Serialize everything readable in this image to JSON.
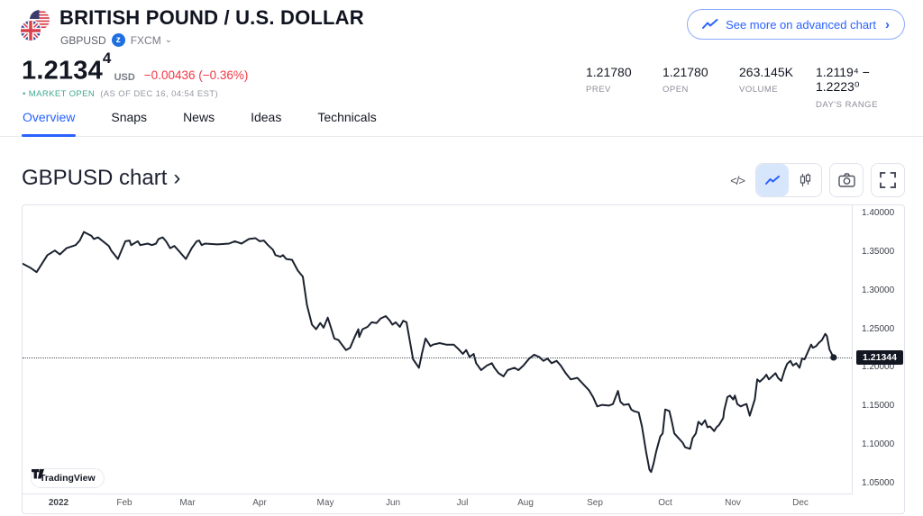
{
  "header": {
    "title": "BRITISH POUND / U.S. DOLLAR",
    "symbol": "GBPUSD",
    "exchange_logo_letter": "z",
    "exchange": "FXCM",
    "exchange_caret": "⌄",
    "advanced_chart_button": "See more on advanced chart",
    "advanced_chart_chevron": "›",
    "price": "1.2134",
    "price_sup": "4",
    "currency": "USD",
    "change": "−0.00436 (−0.36%)",
    "market_bullet": "•",
    "market_status": "MARKET OPEN",
    "market_status_detail": "(AS OF DEC 16, 04:54 EST)",
    "stats": [
      {
        "value": "1.21780",
        "label": "PREV"
      },
      {
        "value": "1.21780",
        "label": "OPEN"
      },
      {
        "value": "263.145K",
        "label": "VOLUME"
      },
      {
        "value": "1.2119⁴ − 1.2223⁰",
        "label": "DAY'S RANGE"
      }
    ]
  },
  "tabs": {
    "active_index": 0,
    "items": [
      "Overview",
      "Snaps",
      "News",
      "Ideas",
      "Technicals"
    ]
  },
  "chart_section": {
    "heading": "GBPUSD chart",
    "heading_chevron": "›",
    "code_icon_text": "</>"
  },
  "watermark_label": "TradingView",
  "colors": {
    "accent_blue": "#2962ff",
    "negative_red": "#f23645",
    "market_open_green": "#3fa98f",
    "line_color": "#1b222f",
    "last_price_tag_bg": "#131722",
    "border_gray": "#e0e3eb"
  },
  "chart_data": {
    "type": "line",
    "title": "GBPUSD chart",
    "xlabel": "",
    "ylabel": "",
    "grid": false,
    "legend": false,
    "ylim": [
      1.0371,
      1.4106
    ],
    "last_price": 1.21344,
    "last_price_label": "1.21344",
    "y_ticks": [
      {
        "value": 1.4,
        "label": "1.40000"
      },
      {
        "value": 1.35,
        "label": "1.35000"
      },
      {
        "value": 1.3,
        "label": "1.30000"
      },
      {
        "value": 1.25,
        "label": "1.25000"
      },
      {
        "value": 1.2,
        "label": "1.20000"
      },
      {
        "value": 1.15,
        "label": "1.15000"
      },
      {
        "value": 1.1,
        "label": "1.10000"
      },
      {
        "value": 1.05,
        "label": "1.05000"
      }
    ],
    "x_ticks": [
      {
        "label": "2022",
        "pos": 0.043,
        "bold": true
      },
      {
        "label": "Feb",
        "pos": 0.123,
        "bold": false
      },
      {
        "label": "Mar",
        "pos": 0.199,
        "bold": false
      },
      {
        "label": "Apr",
        "pos": 0.286,
        "bold": false
      },
      {
        "label": "May",
        "pos": 0.365,
        "bold": false
      },
      {
        "label": "Jun",
        "pos": 0.447,
        "bold": false
      },
      {
        "label": "Jul",
        "pos": 0.53,
        "bold": false
      },
      {
        "label": "Aug",
        "pos": 0.606,
        "bold": false
      },
      {
        "label": "Sep",
        "pos": 0.69,
        "bold": false
      },
      {
        "label": "Oct",
        "pos": 0.775,
        "bold": false
      },
      {
        "label": "Nov",
        "pos": 0.856,
        "bold": false
      },
      {
        "label": "Dec",
        "pos": 0.938,
        "bold": false
      }
    ],
    "points": [
      [
        0.0,
        1.335
      ],
      [
        0.009,
        1.33
      ],
      [
        0.017,
        1.324
      ],
      [
        0.03,
        1.346
      ],
      [
        0.039,
        1.352
      ],
      [
        0.045,
        1.347
      ],
      [
        0.053,
        1.355
      ],
      [
        0.064,
        1.359
      ],
      [
        0.069,
        1.365
      ],
      [
        0.074,
        1.376
      ],
      [
        0.083,
        1.371
      ],
      [
        0.086,
        1.367
      ],
      [
        0.091,
        1.369
      ],
      [
        0.097,
        1.364
      ],
      [
        0.104,
        1.358
      ],
      [
        0.107,
        1.352
      ],
      [
        0.115,
        1.341
      ],
      [
        0.124,
        1.364
      ],
      [
        0.129,
        1.365
      ],
      [
        0.131,
        1.359
      ],
      [
        0.139,
        1.364
      ],
      [
        0.142,
        1.359
      ],
      [
        0.151,
        1.361
      ],
      [
        0.156,
        1.359
      ],
      [
        0.161,
        1.361
      ],
      [
        0.164,
        1.367
      ],
      [
        0.169,
        1.369
      ],
      [
        0.173,
        1.364
      ],
      [
        0.178,
        1.355
      ],
      [
        0.183,
        1.358
      ],
      [
        0.188,
        1.352
      ],
      [
        0.197,
        1.341
      ],
      [
        0.204,
        1.355
      ],
      [
        0.21,
        1.364
      ],
      [
        0.213,
        1.365
      ],
      [
        0.216,
        1.359
      ],
      [
        0.22,
        1.361
      ],
      [
        0.235,
        1.36
      ],
      [
        0.249,
        1.361
      ],
      [
        0.256,
        1.364
      ],
      [
        0.264,
        1.361
      ],
      [
        0.273,
        1.367
      ],
      [
        0.281,
        1.368
      ],
      [
        0.286,
        1.364
      ],
      [
        0.291,
        1.365
      ],
      [
        0.296,
        1.359
      ],
      [
        0.302,
        1.353
      ],
      [
        0.305,
        1.346
      ],
      [
        0.311,
        1.344
      ],
      [
        0.314,
        1.346
      ],
      [
        0.318,
        1.341
      ],
      [
        0.325,
        1.34
      ],
      [
        0.332,
        1.326
      ],
      [
        0.338,
        1.318
      ],
      [
        0.343,
        1.281
      ],
      [
        0.349,
        1.256
      ],
      [
        0.354,
        1.25
      ],
      [
        0.359,
        1.258
      ],
      [
        0.363,
        1.252
      ],
      [
        0.368,
        1.265
      ],
      [
        0.372,
        1.252
      ],
      [
        0.376,
        1.238
      ],
      [
        0.381,
        1.236
      ],
      [
        0.39,
        1.223
      ],
      [
        0.395,
        1.226
      ],
      [
        0.401,
        1.241
      ],
      [
        0.405,
        1.25
      ],
      [
        0.406,
        1.24
      ],
      [
        0.41,
        1.25
      ],
      [
        0.416,
        1.253
      ],
      [
        0.421,
        1.259
      ],
      [
        0.427,
        1.258
      ],
      [
        0.432,
        1.264
      ],
      [
        0.438,
        1.267
      ],
      [
        0.443,
        1.261
      ],
      [
        0.446,
        1.256
      ],
      [
        0.45,
        1.259
      ],
      [
        0.455,
        1.253
      ],
      [
        0.459,
        1.261
      ],
      [
        0.463,
        1.259
      ],
      [
        0.471,
        1.211
      ],
      [
        0.478,
        1.2
      ],
      [
        0.482,
        1.22
      ],
      [
        0.486,
        1.238
      ],
      [
        0.492,
        1.228
      ],
      [
        0.495,
        1.23
      ],
      [
        0.503,
        1.232
      ],
      [
        0.511,
        1.23
      ],
      [
        0.52,
        1.23
      ],
      [
        0.526,
        1.224
      ],
      [
        0.531,
        1.218
      ],
      [
        0.535,
        1.223
      ],
      [
        0.539,
        1.214
      ],
      [
        0.544,
        1.218
      ],
      [
        0.547,
        1.206
      ],
      [
        0.553,
        1.197
      ],
      [
        0.56,
        1.203
      ],
      [
        0.566,
        1.206
      ],
      [
        0.569,
        1.2
      ],
      [
        0.574,
        1.193
      ],
      [
        0.58,
        1.189
      ],
      [
        0.585,
        1.197
      ],
      [
        0.593,
        1.2
      ],
      [
        0.598,
        1.197
      ],
      [
        0.604,
        1.203
      ],
      [
        0.611,
        1.212
      ],
      [
        0.617,
        1.217
      ],
      [
        0.623,
        1.214
      ],
      [
        0.628,
        1.209
      ],
      [
        0.633,
        1.212
      ],
      [
        0.638,
        1.206
      ],
      [
        0.644,
        1.209
      ],
      [
        0.649,
        1.203
      ],
      [
        0.655,
        1.193
      ],
      [
        0.661,
        1.185
      ],
      [
        0.669,
        1.187
      ],
      [
        0.676,
        1.179
      ],
      [
        0.683,
        1.171
      ],
      [
        0.688,
        1.162
      ],
      [
        0.693,
        1.15
      ],
      [
        0.699,
        1.152
      ],
      [
        0.707,
        1.151
      ],
      [
        0.712,
        1.153
      ],
      [
        0.718,
        1.17
      ],
      [
        0.721,
        1.156
      ],
      [
        0.725,
        1.152
      ],
      [
        0.731,
        1.153
      ],
      [
        0.734,
        1.146
      ],
      [
        0.737,
        1.144
      ],
      [
        0.743,
        1.142
      ],
      [
        0.747,
        1.124
      ],
      [
        0.752,
        1.091
      ],
      [
        0.756,
        1.068
      ],
      [
        0.758,
        1.065
      ],
      [
        0.761,
        1.076
      ],
      [
        0.764,
        1.091
      ],
      [
        0.769,
        1.111
      ],
      [
        0.772,
        1.115
      ],
      [
        0.775,
        1.146
      ],
      [
        0.78,
        1.144
      ],
      [
        0.783,
        1.13
      ],
      [
        0.786,
        1.115
      ],
      [
        0.791,
        1.109
      ],
      [
        0.796,
        1.103
      ],
      [
        0.799,
        1.097
      ],
      [
        0.805,
        1.095
      ],
      [
        0.808,
        1.109
      ],
      [
        0.812,
        1.115
      ],
      [
        0.815,
        1.13
      ],
      [
        0.819,
        1.126
      ],
      [
        0.823,
        1.132
      ],
      [
        0.826,
        1.123
      ],
      [
        0.829,
        1.124
      ],
      [
        0.834,
        1.118
      ],
      [
        0.837,
        1.123
      ],
      [
        0.84,
        1.126
      ],
      [
        0.845,
        1.135
      ],
      [
        0.846,
        1.144
      ],
      [
        0.85,
        1.162
      ],
      [
        0.853,
        1.164
      ],
      [
        0.857,
        1.159
      ],
      [
        0.859,
        1.164
      ],
      [
        0.862,
        1.153
      ],
      [
        0.866,
        1.15
      ],
      [
        0.87,
        1.152
      ],
      [
        0.873,
        1.153
      ],
      [
        0.877,
        1.138
      ],
      [
        0.881,
        1.152
      ],
      [
        0.883,
        1.159
      ],
      [
        0.886,
        1.185
      ],
      [
        0.889,
        1.182
      ],
      [
        0.894,
        1.187
      ],
      [
        0.897,
        1.191
      ],
      [
        0.9,
        1.185
      ],
      [
        0.904,
        1.189
      ],
      [
        0.908,
        1.193
      ],
      [
        0.911,
        1.187
      ],
      [
        0.915,
        1.183
      ],
      [
        0.919,
        1.197
      ],
      [
        0.922,
        1.205
      ],
      [
        0.926,
        1.209
      ],
      [
        0.929,
        1.203
      ],
      [
        0.933,
        1.206
      ],
      [
        0.937,
        1.2
      ],
      [
        0.94,
        1.212
      ],
      [
        0.943,
        1.211
      ],
      [
        0.948,
        1.223
      ],
      [
        0.951,
        1.23
      ],
      [
        0.953,
        1.226
      ],
      [
        0.957,
        1.228
      ],
      [
        0.96,
        1.232
      ],
      [
        0.964,
        1.236
      ],
      [
        0.968,
        1.244
      ],
      [
        0.97,
        1.241
      ],
      [
        0.973,
        1.224
      ],
      [
        0.978,
        1.2134
      ]
    ]
  }
}
